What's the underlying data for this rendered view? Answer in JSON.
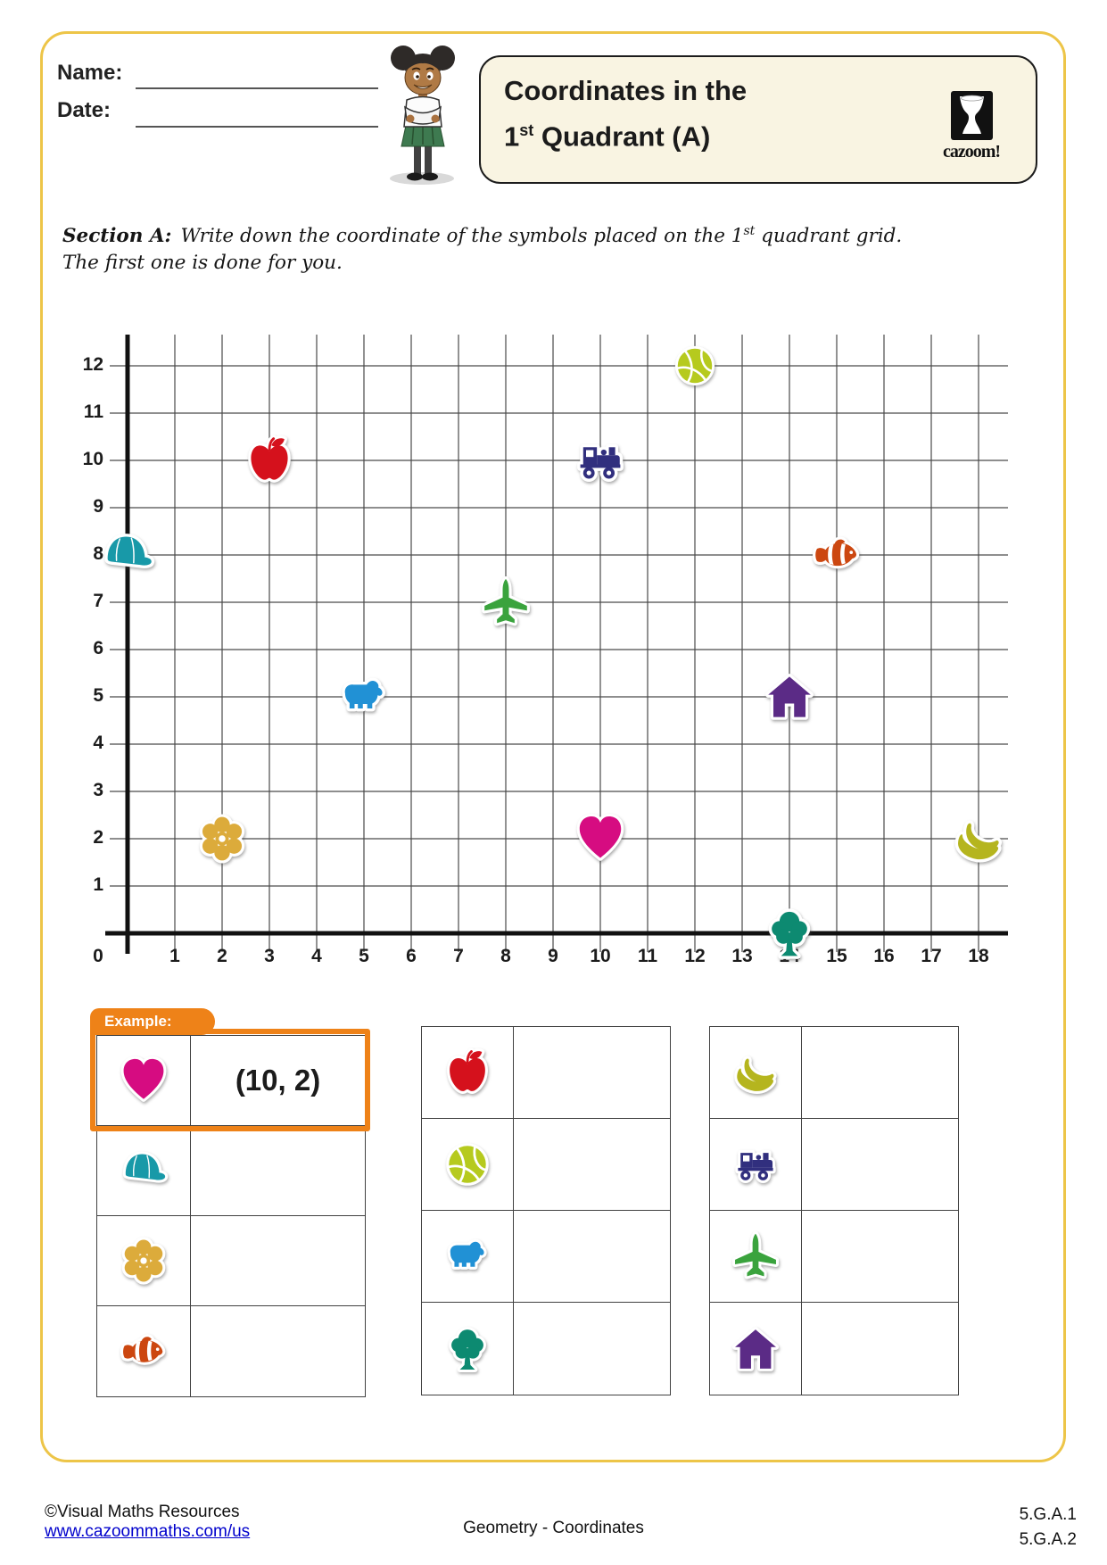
{
  "header": {
    "name_label": "Name:",
    "date_label": "Date:",
    "title_line1": "Coordinates in the",
    "title_line2_num": "1",
    "title_line2_sup": "st",
    "title_line2_rest": " Quadrant (A)",
    "logo_text": "cazoom!"
  },
  "section_a": {
    "label": "Section A:",
    "text_before_sup": "Write down the coordinate of the symbols placed on the 1",
    "sup": "st",
    "text_after_sup": " quadrant grid. The first one is done for you."
  },
  "grid": {
    "x_min": 0,
    "x_max": 18,
    "y_min": 0,
    "y_max": 12,
    "x_tick_labels": [
      "0",
      "1",
      "2",
      "3",
      "4",
      "5",
      "6",
      "7",
      "8",
      "9",
      "10",
      "11",
      "12",
      "13",
      "14",
      "15",
      "16",
      "17",
      "18"
    ],
    "y_tick_labels": [
      "1",
      "2",
      "3",
      "4",
      "5",
      "6",
      "7",
      "8",
      "9",
      "10",
      "11",
      "12"
    ],
    "points": [
      {
        "symbol": "basketball",
        "x": 12,
        "y": 12
      },
      {
        "symbol": "apple",
        "x": 3,
        "y": 10
      },
      {
        "symbol": "train",
        "x": 10,
        "y": 10
      },
      {
        "symbol": "cap",
        "x": 0,
        "y": 8
      },
      {
        "symbol": "fish",
        "x": 15,
        "y": 8
      },
      {
        "symbol": "plane",
        "x": 8,
        "y": 7
      },
      {
        "symbol": "bear",
        "x": 5,
        "y": 5
      },
      {
        "symbol": "house",
        "x": 14,
        "y": 5
      },
      {
        "symbol": "flower",
        "x": 2,
        "y": 2
      },
      {
        "symbol": "heart",
        "x": 10,
        "y": 2
      },
      {
        "symbol": "banana",
        "x": 18,
        "y": 2
      },
      {
        "symbol": "tree",
        "x": 14,
        "y": 0
      }
    ]
  },
  "example": {
    "label": "Example:"
  },
  "answer_tables": [
    {
      "rows": [
        {
          "symbol": "heart",
          "answer": "(10, 2)",
          "example": true
        },
        {
          "symbol": "cap",
          "answer": ""
        },
        {
          "symbol": "flower",
          "answer": ""
        },
        {
          "symbol": "fish",
          "answer": ""
        }
      ]
    },
    {
      "rows": [
        {
          "symbol": "apple",
          "answer": ""
        },
        {
          "symbol": "basketball",
          "answer": ""
        },
        {
          "symbol": "bear",
          "answer": ""
        },
        {
          "symbol": "tree",
          "answer": ""
        }
      ]
    },
    {
      "rows": [
        {
          "symbol": "banana",
          "answer": ""
        },
        {
          "symbol": "train",
          "answer": ""
        },
        {
          "symbol": "plane",
          "answer": ""
        },
        {
          "symbol": "house",
          "answer": ""
        }
      ]
    }
  ],
  "symbol_colors": {
    "heart": "#d60c81",
    "cap": "#1899a8",
    "flower": "#dcab3b",
    "fish": "#cc4710",
    "apple": "#d5111c",
    "basketball": "#b6ca1e",
    "bear": "#2191d5",
    "tree": "#0d8a71",
    "banana": "#b5b51e",
    "train": "#312f7e",
    "plane": "#3aa33d",
    "house": "#5b2b86"
  },
  "theme": {
    "frame_border": "#edc548",
    "example_orange": "#ee8218",
    "title_box_bg": "#f9f4e2",
    "link_blue": "#0000cc"
  },
  "footer": {
    "copyright": "©Visual Maths Resources",
    "url": "www.cazoommaths.com/us",
    "center": "Geometry - Coordinates",
    "standards": [
      "5.G.A.1",
      "5.G.A.2"
    ]
  }
}
